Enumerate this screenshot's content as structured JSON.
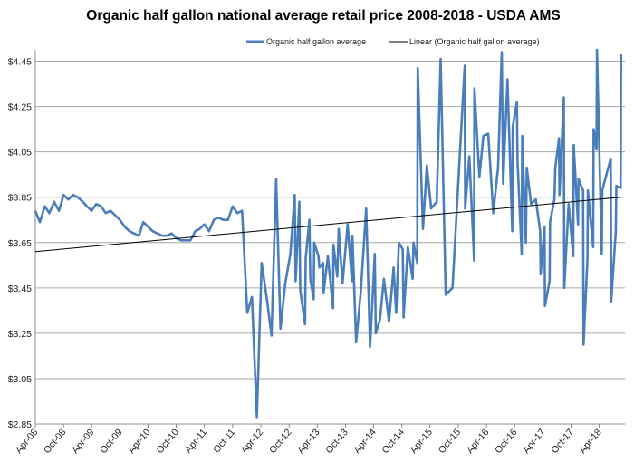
{
  "chart_data": {
    "type": "line",
    "title": "Organic half gallon national average retail price 2008-2018 - USDA AMS",
    "xlabel": "",
    "ylabel": "",
    "legend_position": "top",
    "grid": "horizontal",
    "xlim": [
      "2008-04-01",
      "2018-09-15"
    ],
    "ylim": [
      2.85,
      4.5
    ],
    "y_ticks": [
      "$2.85",
      "$3.05",
      "$3.25",
      "$3.45",
      "$3.65",
      "$3.85",
      "$4.05",
      "$4.25",
      "$4.45"
    ],
    "x_ticks": [
      {
        "date": "2008-04-01",
        "label": "Apr-08"
      },
      {
        "date": "2008-10-01",
        "label": "Oct-08"
      },
      {
        "date": "2009-04-01",
        "label": "Apr-09"
      },
      {
        "date": "2009-10-01",
        "label": "Oct-09"
      },
      {
        "date": "2010-04-01",
        "label": "Apr-10"
      },
      {
        "date": "2010-10-01",
        "label": "Oct-10"
      },
      {
        "date": "2011-04-01",
        "label": "Apr-11"
      },
      {
        "date": "2011-10-01",
        "label": "Oct-11"
      },
      {
        "date": "2012-04-01",
        "label": "Apr-12"
      },
      {
        "date": "2012-10-01",
        "label": "Oct-12"
      },
      {
        "date": "2013-04-01",
        "label": "Apr-13"
      },
      {
        "date": "2013-10-01",
        "label": "Oct-13"
      },
      {
        "date": "2014-04-01",
        "label": "Apr-14"
      },
      {
        "date": "2014-10-01",
        "label": "Oct-14"
      },
      {
        "date": "2015-04-01",
        "label": "Apr-15"
      },
      {
        "date": "2015-10-01",
        "label": "Oct-15"
      },
      {
        "date": "2016-04-01",
        "label": "Apr-16"
      },
      {
        "date": "2016-10-01",
        "label": "Oct-16"
      },
      {
        "date": "2017-04-01",
        "label": "Apr-17"
      },
      {
        "date": "2017-10-01",
        "label": "Oct-17"
      },
      {
        "date": "2018-04-01",
        "label": "Apr-18"
      }
    ],
    "series": [
      {
        "name": "Organic half gallon average",
        "color": "#4a7ebb",
        "points": [
          [
            "2008-04-01",
            3.79
          ],
          [
            "2008-05-01",
            3.74
          ],
          [
            "2008-06-01",
            3.81
          ],
          [
            "2008-07-01",
            3.78
          ],
          [
            "2008-08-01",
            3.83
          ],
          [
            "2008-09-01",
            3.79
          ],
          [
            "2008-10-01",
            3.86
          ],
          [
            "2008-11-01",
            3.84
          ],
          [
            "2008-12-01",
            3.86
          ],
          [
            "2009-01-01",
            3.85
          ],
          [
            "2009-02-01",
            3.83
          ],
          [
            "2009-03-01",
            3.81
          ],
          [
            "2009-04-01",
            3.79
          ],
          [
            "2009-05-01",
            3.82
          ],
          [
            "2009-06-01",
            3.81
          ],
          [
            "2009-07-01",
            3.78
          ],
          [
            "2009-08-01",
            3.79
          ],
          [
            "2009-09-01",
            3.77
          ],
          [
            "2009-10-01",
            3.75
          ],
          [
            "2009-11-01",
            3.72
          ],
          [
            "2009-12-01",
            3.7
          ],
          [
            "2010-01-01",
            3.69
          ],
          [
            "2010-02-01",
            3.68
          ],
          [
            "2010-03-01",
            3.74
          ],
          [
            "2010-04-01",
            3.72
          ],
          [
            "2010-05-01",
            3.7
          ],
          [
            "2010-06-01",
            3.69
          ],
          [
            "2010-07-01",
            3.68
          ],
          [
            "2010-08-01",
            3.68
          ],
          [
            "2010-09-01",
            3.69
          ],
          [
            "2010-10-01",
            3.67
          ],
          [
            "2010-11-01",
            3.66
          ],
          [
            "2010-12-01",
            3.66
          ],
          [
            "2011-01-01",
            3.66
          ],
          [
            "2011-02-01",
            3.7
          ],
          [
            "2011-03-01",
            3.71
          ],
          [
            "2011-04-01",
            3.73
          ],
          [
            "2011-05-01",
            3.7
          ],
          [
            "2011-06-01",
            3.75
          ],
          [
            "2011-07-01",
            3.76
          ],
          [
            "2011-08-01",
            3.75
          ],
          [
            "2011-09-01",
            3.75
          ],
          [
            "2011-10-01",
            3.81
          ],
          [
            "2011-11-01",
            3.78
          ],
          [
            "2011-12-01",
            3.79
          ],
          [
            "2012-01-04",
            3.34
          ],
          [
            "2012-02-03",
            3.41
          ],
          [
            "2012-03-06",
            2.88
          ],
          [
            "2012-04-06",
            3.56
          ],
          [
            "2012-05-10",
            3.4
          ],
          [
            "2012-06-09",
            3.24
          ],
          [
            "2012-07-09",
            3.93
          ],
          [
            "2012-08-06",
            3.27
          ],
          [
            "2012-09-06",
            3.47
          ],
          [
            "2012-10-09",
            3.6
          ],
          [
            "2012-11-06",
            3.86
          ],
          [
            "2012-11-12",
            3.48
          ],
          [
            "2012-12-06",
            3.83
          ],
          [
            "2012-12-12",
            3.44
          ],
          [
            "2013-01-12",
            3.29
          ],
          [
            "2013-01-16",
            3.58
          ],
          [
            "2013-02-09",
            3.75
          ],
          [
            "2013-02-15",
            3.49
          ],
          [
            "2013-03-09",
            3.4
          ],
          [
            "2013-03-12",
            3.65
          ],
          [
            "2013-04-09",
            3.59
          ],
          [
            "2013-04-15",
            3.54
          ],
          [
            "2013-05-09",
            3.56
          ],
          [
            "2013-05-12",
            3.43
          ],
          [
            "2013-06-09",
            3.59
          ],
          [
            "2013-07-12",
            3.36
          ],
          [
            "2013-07-15",
            3.64
          ],
          [
            "2013-08-09",
            3.5
          ],
          [
            "2013-08-18",
            3.71
          ],
          [
            "2013-09-12",
            3.47
          ],
          [
            "2013-10-15",
            3.73
          ],
          [
            "2013-11-12",
            3.48
          ],
          [
            "2013-11-15",
            3.68
          ],
          [
            "2013-12-09",
            3.21
          ],
          [
            "2014-01-09",
            3.44
          ],
          [
            "2014-02-12",
            3.8
          ],
          [
            "2014-03-09",
            3.19
          ],
          [
            "2014-04-09",
            3.6
          ],
          [
            "2014-04-15",
            3.25
          ],
          [
            "2014-05-12",
            3.31
          ],
          [
            "2014-06-07",
            3.49
          ],
          [
            "2014-07-10",
            3.3
          ],
          [
            "2014-08-09",
            3.54
          ],
          [
            "2014-08-25",
            3.34
          ],
          [
            "2014-09-12",
            3.65
          ],
          [
            "2014-10-07",
            3.62
          ],
          [
            "2014-10-12",
            3.32
          ],
          [
            "2014-11-09",
            3.63
          ],
          [
            "2014-12-10",
            3.49
          ],
          [
            "2014-12-15",
            3.65
          ],
          [
            "2015-01-09",
            3.56
          ],
          [
            "2015-01-12",
            4.42
          ],
          [
            "2015-02-15",
            3.71
          ],
          [
            "2015-03-12",
            3.99
          ],
          [
            "2015-04-09",
            3.8
          ],
          [
            "2015-05-15",
            3.83
          ],
          [
            "2015-06-09",
            4.46
          ],
          [
            "2015-07-12",
            3.42
          ],
          [
            "2015-08-25",
            3.45
          ],
          [
            "2015-11-12",
            4.43
          ],
          [
            "2015-11-15",
            3.8
          ],
          [
            "2015-12-12",
            4.03
          ],
          [
            "2016-01-12",
            3.57
          ],
          [
            "2016-01-14",
            4.33
          ],
          [
            "2016-02-15",
            3.94
          ],
          [
            "2016-03-12",
            4.12
          ],
          [
            "2016-04-12",
            4.13
          ],
          [
            "2016-04-21",
            4.04
          ],
          [
            "2016-05-15",
            3.78
          ],
          [
            "2016-06-15",
            3.98
          ],
          [
            "2016-07-09",
            4.49
          ],
          [
            "2016-07-18",
            3.91
          ],
          [
            "2016-08-15",
            4.37
          ],
          [
            "2016-09-15",
            3.7
          ],
          [
            "2016-09-18",
            4.16
          ],
          [
            "2016-10-15",
            4.27
          ],
          [
            "2016-10-19",
            4.01
          ],
          [
            "2016-11-15",
            3.6
          ],
          [
            "2016-11-19",
            4.12
          ],
          [
            "2016-12-12",
            3.65
          ],
          [
            "2016-12-18",
            3.98
          ],
          [
            "2017-01-15",
            3.82
          ],
          [
            "2017-02-15",
            3.84
          ],
          [
            "2017-03-15",
            3.7
          ],
          [
            "2017-03-18",
            3.51
          ],
          [
            "2017-04-12",
            3.72
          ],
          [
            "2017-04-15",
            3.37
          ],
          [
            "2017-05-15",
            3.48
          ],
          [
            "2017-05-18",
            3.74
          ],
          [
            "2017-06-15",
            3.84
          ],
          [
            "2017-06-21",
            3.98
          ],
          [
            "2017-07-15",
            4.11
          ],
          [
            "2017-07-18",
            3.86
          ],
          [
            "2017-08-15",
            4.29
          ],
          [
            "2017-08-18",
            3.45
          ],
          [
            "2017-09-15",
            3.82
          ],
          [
            "2017-10-15",
            3.59
          ],
          [
            "2017-10-18",
            4.08
          ],
          [
            "2017-11-15",
            3.73
          ],
          [
            "2017-11-18",
            3.93
          ],
          [
            "2017-12-18",
            3.88
          ],
          [
            "2017-12-21",
            3.2
          ],
          [
            "2018-01-15",
            3.58
          ],
          [
            "2018-01-18",
            3.88
          ],
          [
            "2018-02-21",
            3.63
          ],
          [
            "2018-02-24",
            4.15
          ],
          [
            "2018-03-15",
            4.06
          ],
          [
            "2018-03-18",
            4.5
          ],
          [
            "2018-04-18",
            3.6
          ],
          [
            "2018-04-21",
            3.88
          ],
          [
            "2018-06-15",
            4.02
          ],
          [
            "2018-06-18",
            3.39
          ],
          [
            "2018-07-18",
            3.7
          ],
          [
            "2018-07-21",
            3.9
          ],
          [
            "2018-08-18",
            3.89
          ],
          [
            "2018-08-21",
            4.48
          ]
        ]
      },
      {
        "name": "Linear (Organic half gallon average)",
        "color": "#000000",
        "trendline": true,
        "points": [
          [
            "2008-04-01",
            3.61
          ],
          [
            "2018-08-21",
            3.85
          ]
        ]
      }
    ]
  }
}
